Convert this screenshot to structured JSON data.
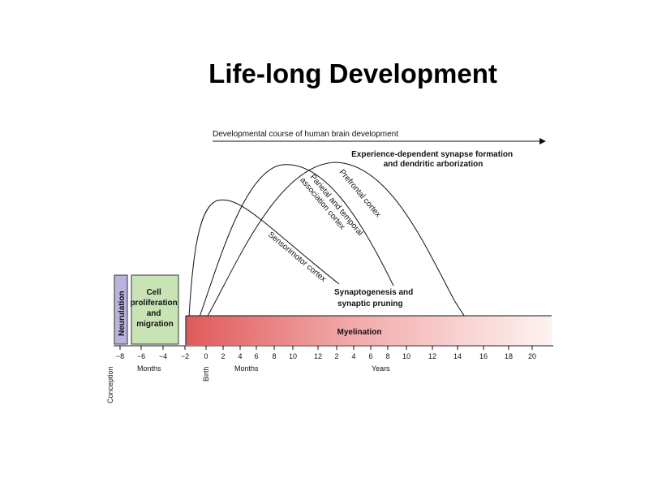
{
  "slide": {
    "title": "Life-long Development"
  },
  "diagram": {
    "course_label": "Developmental course of human brain development",
    "experience_label": [
      "Experience-dependent synapse formation",
      "and dendritic arborization"
    ],
    "curves": {
      "prefrontal": "Prefrontal cortex",
      "parietal": [
        "Parietal and temporal",
        "association cortex"
      ],
      "sensorimotor": "Sensorimotor cortex"
    },
    "synapto_label": [
      "Synaptogenesis and",
      "synaptic pruning"
    ],
    "neurulation": "Neurulation",
    "cell_label": [
      "Cell",
      "proliferation",
      "and",
      "migration"
    ],
    "myelination": "Myelination",
    "ticks": {
      "prenatal_months": [
        "−8",
        "−6",
        "−4",
        "−2"
      ],
      "postnatal_months": [
        "0",
        "2",
        "4",
        "6",
        "8",
        "10",
        "12"
      ],
      "years": [
        "2",
        "4",
        "6",
        "8",
        "10",
        "12",
        "14",
        "16",
        "18",
        "20"
      ]
    },
    "axis_labels": {
      "conception": "Conception",
      "birth": "Birth",
      "prenatal_unit": "Months",
      "postnatal_unit": "Months",
      "years_unit": "Years"
    },
    "colors": {
      "neurulation_fill": "#b9b3de",
      "cell_fill": "#c8e4b5",
      "myelination_start": "#e05a5a",
      "myelination_end": "#fdf3f1"
    }
  }
}
